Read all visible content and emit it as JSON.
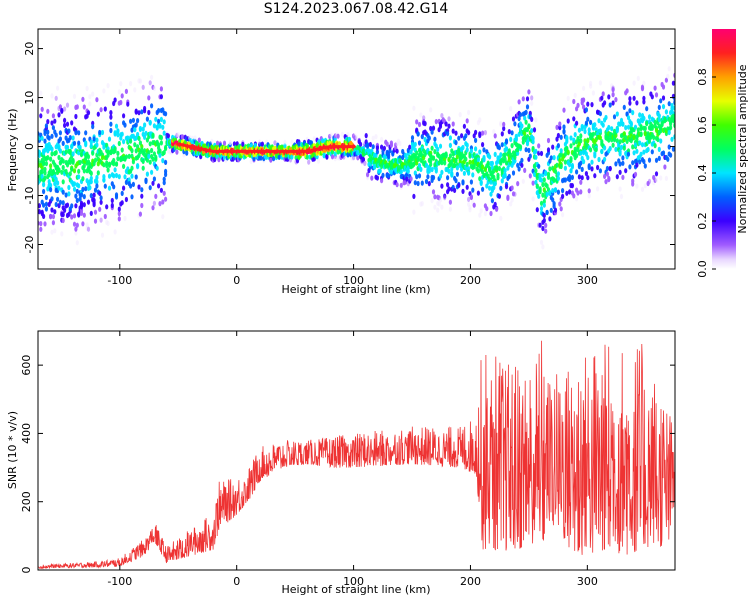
{
  "title": "S124.2023.067.08.42.G14",
  "chart_data": [
    {
      "type": "heatmap",
      "xlabel": "Height of straight line (km)",
      "ylabel": "Frequency (Hz)",
      "xlim": [
        -170,
        375
      ],
      "ylim": [
        -25,
        24
      ],
      "xticks": [
        -100,
        0,
        100,
        200,
        300
      ],
      "yticks": [
        -20,
        -10,
        0,
        10,
        20
      ],
      "colorbar": {
        "label": "Normalized spectral amplitude",
        "range": [
          0,
          1
        ],
        "ticks": [
          0.0,
          0.2,
          0.4,
          0.6,
          0.8
        ],
        "colormap": "gist_rainbow_r"
      },
      "ridge": {
        "x": [
          -140,
          -100,
          -80,
          -60,
          -40,
          -20,
          0,
          20,
          60,
          80,
          100,
          120,
          140,
          160,
          200,
          220,
          230,
          240,
          250,
          260,
          280,
          300,
          320,
          340,
          360,
          375
        ],
        "freq": [
          -4,
          -2,
          -1,
          1,
          0,
          -1,
          -1,
          -1,
          -1,
          0,
          0,
          -3,
          -4,
          -2,
          -3,
          -6,
          -3,
          0,
          4,
          -10,
          -2,
          1,
          2,
          2,
          3,
          5
        ]
      }
    },
    {
      "type": "line",
      "xlabel": "Height of straight line (km)",
      "ylabel": "SNR (10 * v/v)",
      "xlim": [
        -170,
        375
      ],
      "ylim": [
        0,
        700
      ],
      "xticks": [
        -100,
        0,
        100,
        200,
        300
      ],
      "yticks": [
        0,
        200,
        400,
        600
      ],
      "line_color": "#ee3333",
      "envelope": {
        "x": [
          -170,
          -120,
          -100,
          -80,
          -70,
          -60,
          -40,
          -20,
          -15,
          0,
          10,
          20,
          40,
          60,
          80,
          100,
          150,
          190,
          205,
          210,
          230,
          250,
          262,
          265,
          290,
          320,
          345,
          370,
          375
        ],
        "low": [
          5,
          8,
          10,
          40,
          80,
          20,
          40,
          60,
          120,
          160,
          200,
          260,
          300,
          310,
          300,
          300,
          310,
          300,
          280,
          60,
          50,
          70,
          60,
          150,
          40,
          50,
          40,
          80,
          200
        ],
        "high": [
          15,
          25,
          35,
          90,
          140,
          70,
          120,
          170,
          260,
          270,
          300,
          360,
          380,
          380,
          390,
          400,
          420,
          420,
          450,
          660,
          620,
          600,
          700,
          560,
          650,
          680,
          680,
          470,
          430
        ]
      }
    }
  ]
}
